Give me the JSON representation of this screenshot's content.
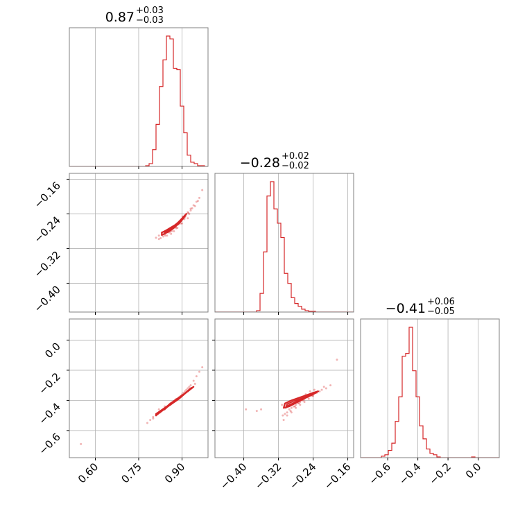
{
  "chart_data": {
    "type": "corner",
    "accent_color": "#d62728",
    "grid": true,
    "titles": [
      {
        "value": "0.87",
        "plus": "+0.03",
        "minus": "−0.03"
      },
      {
        "value": "−0.28",
        "plus": "+0.02",
        "minus": "−0.02"
      },
      {
        "value": "−0.41",
        "plus": "+0.06",
        "minus": "−0.05"
      }
    ],
    "params": [
      {
        "range": [
          0.51,
          0.99
        ],
        "ticks": [
          0.6,
          0.75,
          0.9
        ],
        "tick_labels": [
          "0.60",
          "0.75",
          "0.90"
        ]
      },
      {
        "range": [
          -0.4665,
          -0.1465
        ],
        "ticks": [
          -0.4,
          -0.32,
          -0.24,
          -0.16
        ],
        "tick_labels": [
          "−0.40",
          "−0.32",
          "−0.24",
          "−0.16"
        ]
      },
      {
        "range": [
          -0.78,
          0.14
        ],
        "ticks": [
          -0.6,
          -0.4,
          -0.2,
          0.0
        ],
        "tick_labels": [
          "−0.6",
          "−0.4",
          "−0.2",
          "0.0"
        ]
      }
    ],
    "histograms": [
      {
        "param": 0,
        "edges": [
          0.51,
          0.522,
          0.534,
          0.546,
          0.558,
          0.57,
          0.582,
          0.594,
          0.606,
          0.618,
          0.63,
          0.642,
          0.654,
          0.666,
          0.678,
          0.69,
          0.702,
          0.714,
          0.726,
          0.738,
          0.75,
          0.762,
          0.774,
          0.786,
          0.798,
          0.81,
          0.822,
          0.834,
          0.846,
          0.858,
          0.87,
          0.882,
          0.894,
          0.906,
          0.918,
          0.93,
          0.942,
          0.954,
          0.966,
          0.978,
          0.99
        ],
        "counts": [
          0,
          0,
          0,
          0,
          0,
          0,
          0,
          0,
          0,
          0,
          0,
          0,
          0,
          0,
          0,
          0,
          0,
          0,
          0,
          0,
          0,
          0,
          0.005,
          0.02,
          0.12,
          0.3,
          0.57,
          0.76,
          0.93,
          0.91,
          0.7,
          0.69,
          0.43,
          0.24,
          0.08,
          0.03,
          0.02,
          0.005,
          0.005,
          0
        ]
      },
      {
        "param": 1,
        "edges": [
          -0.4665,
          -0.4585,
          -0.4505,
          -0.4425,
          -0.4345,
          -0.4265,
          -0.4185,
          -0.4105,
          -0.4025,
          -0.3945,
          -0.3865,
          -0.3785,
          -0.3705,
          -0.3625,
          -0.3545,
          -0.3465,
          -0.3385,
          -0.3305,
          -0.3225,
          -0.3145,
          -0.3065,
          -0.2985,
          -0.2905,
          -0.2825,
          -0.2745,
          -0.2665,
          -0.2585,
          -0.2505,
          -0.2425,
          -0.2345,
          -0.2265,
          -0.2185,
          -0.2105,
          -0.2025,
          -0.1945,
          -0.1865,
          -0.1785,
          -0.1705,
          -0.1625,
          -0.1545,
          -0.1465
        ],
        "counts": [
          0,
          0,
          0,
          0,
          0,
          0,
          0,
          0,
          0,
          0,
          0,
          0,
          0.01,
          0.13,
          0.42,
          0.81,
          0.91,
          0.72,
          0.62,
          0.52,
          0.27,
          0.2,
          0.1,
          0.06,
          0.04,
          0.02,
          0.01,
          0.005,
          0.005,
          0,
          0,
          0,
          0,
          0,
          0,
          0,
          0,
          0,
          0,
          0
        ]
      },
      {
        "param": 2,
        "edges": [
          -0.78,
          -0.757,
          -0.734,
          -0.711,
          -0.688,
          -0.665,
          -0.642,
          -0.619,
          -0.596,
          -0.573,
          -0.55,
          -0.527,
          -0.504,
          -0.481,
          -0.458,
          -0.435,
          -0.412,
          -0.389,
          -0.366,
          -0.343,
          -0.32,
          -0.297,
          -0.274,
          -0.251,
          -0.228,
          -0.205,
          -0.182,
          -0.159,
          -0.136,
          -0.113,
          -0.09,
          -0.067,
          -0.044,
          -0.021,
          0.002,
          0.025,
          0.048,
          0.071,
          0.094,
          0.117,
          0.14
        ],
        "counts": [
          0,
          0,
          0,
          0,
          0,
          0,
          0.01,
          0.02,
          0.05,
          0.1,
          0.25,
          0.42,
          0.7,
          0.72,
          0.9,
          0.6,
          0.42,
          0.22,
          0.13,
          0.06,
          0.03,
          0.02,
          0.005,
          0,
          0,
          0,
          0,
          0,
          0,
          0,
          0,
          0,
          0.005,
          0,
          0,
          0,
          0,
          0,
          0,
          0
        ]
      }
    ],
    "scatters": [
      {
        "x_param": 0,
        "y_param": 1,
        "x": [
          0.82,
          0.83,
          0.84,
          0.845,
          0.85,
          0.86,
          0.87,
          0.875,
          0.88,
          0.885,
          0.89,
          0.9,
          0.905,
          0.91,
          0.915,
          0.92,
          0.93,
          0.94,
          0.95,
          0.96,
          0.835,
          0.842,
          0.855,
          0.865,
          0.878,
          0.888,
          0.898,
          0.912,
          0.922,
          0.935,
          0.81,
          0.826,
          0.848,
          0.862,
          0.872,
          0.884,
          0.896,
          0.908,
          0.925,
          0.945,
          0.902,
          0.955,
          0.97,
          0.83,
          0.85,
          0.87,
          0.89,
          0.91,
          0.93,
          0.84,
          0.86,
          0.88,
          0.9,
          0.92,
          0.82
        ],
        "y": [
          -0.29,
          -0.288,
          -0.285,
          -0.282,
          -0.28,
          -0.276,
          -0.272,
          -0.268,
          -0.266,
          -0.262,
          -0.258,
          -0.252,
          -0.248,
          -0.244,
          -0.24,
          -0.236,
          -0.228,
          -0.22,
          -0.212,
          -0.203,
          -0.292,
          -0.29,
          -0.283,
          -0.279,
          -0.271,
          -0.264,
          -0.256,
          -0.245,
          -0.238,
          -0.227,
          -0.295,
          -0.296,
          -0.29,
          -0.286,
          -0.28,
          -0.272,
          -0.262,
          -0.252,
          -0.24,
          -0.222,
          -0.246,
          -0.21,
          -0.185,
          -0.283,
          -0.278,
          -0.27,
          -0.26,
          -0.248,
          -0.232,
          -0.287,
          -0.281,
          -0.273,
          -0.262,
          -0.25,
          -0.298
        ]
      },
      {
        "x_param": 0,
        "y_param": 2,
        "x": [
          0.78,
          0.79,
          0.8,
          0.81,
          0.82,
          0.83,
          0.84,
          0.85,
          0.86,
          0.87,
          0.88,
          0.89,
          0.9,
          0.91,
          0.92,
          0.93,
          0.94,
          0.95,
          0.96,
          0.97,
          0.815,
          0.825,
          0.835,
          0.845,
          0.855,
          0.865,
          0.875,
          0.885,
          0.895,
          0.905,
          0.915,
          0.925,
          0.82,
          0.84,
          0.86,
          0.88,
          0.9,
          0.92,
          0.8,
          0.945,
          0.55
        ],
        "y": [
          -0.55,
          -0.53,
          -0.51,
          -0.5,
          -0.48,
          -0.47,
          -0.46,
          -0.44,
          -0.43,
          -0.41,
          -0.4,
          -0.38,
          -0.36,
          -0.34,
          -0.32,
          -0.3,
          -0.27,
          -0.24,
          -0.21,
          -0.18,
          -0.49,
          -0.48,
          -0.46,
          -0.45,
          -0.43,
          -0.42,
          -0.4,
          -0.39,
          -0.37,
          -0.35,
          -0.33,
          -0.31,
          -0.46,
          -0.44,
          -0.42,
          -0.39,
          -0.37,
          -0.34,
          -0.52,
          -0.29,
          -0.69
        ]
      },
      {
        "x_param": 1,
        "y_param": 2,
        "x": [
          -0.31,
          -0.305,
          -0.3,
          -0.295,
          -0.29,
          -0.285,
          -0.28,
          -0.275,
          -0.27,
          -0.265,
          -0.26,
          -0.255,
          -0.25,
          -0.245,
          -0.24,
          -0.235,
          -0.23,
          -0.22,
          -0.21,
          -0.2,
          -0.303,
          -0.298,
          -0.292,
          -0.287,
          -0.282,
          -0.277,
          -0.272,
          -0.267,
          -0.262,
          -0.257,
          -0.252,
          -0.247,
          -0.242,
          -0.237,
          -0.232,
          -0.312,
          -0.308,
          -0.3,
          -0.29,
          -0.28,
          -0.27,
          -0.26,
          -0.25,
          -0.24,
          -0.225,
          -0.215,
          -0.36,
          -0.37,
          -0.395,
          -0.185
        ],
        "y": [
          -0.5,
          -0.49,
          -0.48,
          -0.46,
          -0.45,
          -0.44,
          -0.43,
          -0.42,
          -0.41,
          -0.4,
          -0.39,
          -0.38,
          -0.37,
          -0.36,
          -0.35,
          -0.35,
          -0.34,
          -0.33,
          -0.32,
          -0.3,
          -0.45,
          -0.43,
          -0.47,
          -0.42,
          -0.44,
          -0.4,
          -0.42,
          -0.38,
          -0.4,
          -0.36,
          -0.38,
          -0.34,
          -0.37,
          -0.33,
          -0.35,
          -0.43,
          -0.53,
          -0.5,
          -0.48,
          -0.45,
          -0.43,
          -0.41,
          -0.39,
          -0.37,
          -0.34,
          -0.31,
          -0.46,
          -0.47,
          -0.46,
          -0.13
        ]
      }
    ],
    "contours": [
      {
        "x_param": 0,
        "y_param": 1,
        "levels": [
          {
            "x": [
              0.83,
              0.845,
              0.86,
              0.875,
              0.89,
              0.905,
              0.915,
              0.905,
              0.89,
              0.875,
              0.86,
              0.845,
              0.83,
              0.83
            ],
            "y": [
              -0.283,
              -0.278,
              -0.272,
              -0.266,
              -0.258,
              -0.247,
              -0.24,
              -0.25,
              -0.262,
              -0.27,
              -0.277,
              -0.284,
              -0.289,
              -0.283
            ]
          },
          {
            "x": [
              0.84,
              0.86,
              0.88,
              0.9,
              0.91,
              0.9,
              0.88,
              0.86,
              0.84,
              0.84
            ],
            "y": [
              -0.282,
              -0.274,
              -0.264,
              -0.25,
              -0.244,
              -0.254,
              -0.268,
              -0.278,
              -0.285,
              -0.282
            ]
          },
          {
            "x": [
              0.85,
              0.87,
              0.89,
              0.9,
              0.89,
              0.87,
              0.85,
              0.85
            ],
            "y": [
              -0.28,
              -0.271,
              -0.259,
              -0.253,
              -0.261,
              -0.274,
              -0.283,
              -0.28
            ]
          }
        ]
      },
      {
        "x_param": 0,
        "y_param": 2,
        "levels": [
          {
            "x": [
              0.81,
              0.84,
              0.87,
              0.9,
              0.93,
              0.94,
              0.92,
              0.89,
              0.86,
              0.83,
              0.81,
              0.81
            ],
            "y": [
              -0.49,
              -0.45,
              -0.41,
              -0.37,
              -0.32,
              -0.31,
              -0.34,
              -0.38,
              -0.42,
              -0.47,
              -0.5,
              -0.49
            ]
          },
          {
            "x": [
              0.83,
              0.86,
              0.89,
              0.92,
              0.9,
              0.87,
              0.84,
              0.83
            ],
            "y": [
              -0.47,
              -0.43,
              -0.39,
              -0.34,
              -0.37,
              -0.41,
              -0.46,
              -0.47
            ]
          }
        ]
      },
      {
        "x_param": 1,
        "y_param": 2,
        "levels": [
          {
            "x": [
              -0.305,
              -0.29,
              -0.27,
              -0.25,
              -0.235,
              -0.228,
              -0.24,
              -0.255,
              -0.275,
              -0.295,
              -0.308,
              -0.305
            ],
            "y": [
              -0.42,
              -0.4,
              -0.38,
              -0.36,
              -0.345,
              -0.34,
              -0.36,
              -0.38,
              -0.41,
              -0.44,
              -0.45,
              -0.42
            ]
          },
          {
            "x": [
              -0.3,
              -0.285,
              -0.265,
              -0.245,
              -0.235,
              -0.25,
              -0.27,
              -0.29,
              -0.302,
              -0.3
            ],
            "y": [
              -0.425,
              -0.405,
              -0.385,
              -0.363,
              -0.352,
              -0.372,
              -0.395,
              -0.425,
              -0.44,
              -0.425
            ]
          },
          {
            "x": [
              -0.295,
              -0.28,
              -0.262,
              -0.248,
              -0.258,
              -0.275,
              -0.292,
              -0.295
            ],
            "y": [
              -0.43,
              -0.41,
              -0.388,
              -0.372,
              -0.382,
              -0.405,
              -0.433,
              -0.43
            ]
          }
        ]
      }
    ]
  }
}
